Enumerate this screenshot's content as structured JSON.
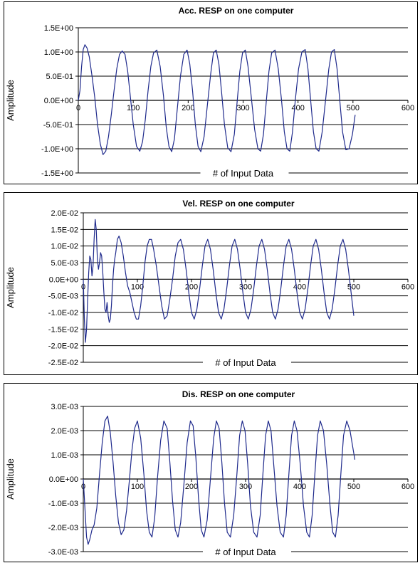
{
  "chart_data": [
    {
      "type": "line",
      "title": "Acc. RESP on one computer",
      "xlabel": "# of Input Data",
      "ylabel": "Amplitude",
      "xlim": [
        0,
        600
      ],
      "ylim": [
        -1.5,
        1.5
      ],
      "x_ticks": [
        0,
        100,
        200,
        300,
        400,
        500,
        600
      ],
      "x_tick_labels": [
        "0",
        "100",
        "200",
        "300",
        "400",
        "500",
        "600"
      ],
      "y_ticks": [
        1.5,
        1.0,
        0.5,
        0.0,
        -0.5,
        -1.0,
        -1.5
      ],
      "y_tick_labels": [
        "1.5E+00",
        "1.0E+00",
        "5.0E-01",
        "0.0E+00",
        "-5.0E-01",
        "-1.0E+00",
        "-1.5E+00"
      ],
      "grid": "horizontal",
      "series_color": "#1f2a8c",
      "series": [
        {
          "x": [
            0,
            3,
            6,
            9,
            12,
            16,
            20,
            25,
            30,
            35,
            40,
            45,
            50,
            55,
            60,
            65,
            70,
            75,
            80,
            85,
            90,
            95,
            100,
            106,
            112,
            117,
            122,
            127,
            132,
            137,
            143,
            149,
            155,
            160,
            165,
            170,
            175,
            180,
            186,
            192,
            198,
            203,
            208,
            213,
            218,
            223,
            229,
            235,
            241,
            246,
            251,
            256,
            261,
            266,
            272,
            278,
            284,
            289,
            294,
            299,
            304,
            309,
            315,
            321,
            327,
            332,
            337,
            342,
            347,
            352,
            358,
            364,
            370,
            375,
            380,
            385,
            390,
            395,
            401,
            407,
            413,
            418,
            423,
            428,
            433,
            438,
            444,
            450,
            456,
            461,
            466,
            471,
            476,
            481,
            487,
            493,
            499,
            504
          ],
          "y": [
            0.0,
            0.2,
            0.7,
            1.05,
            1.15,
            1.08,
            0.9,
            0.5,
            0.05,
            -0.5,
            -0.9,
            -1.12,
            -1.05,
            -0.75,
            -0.3,
            0.2,
            0.65,
            0.95,
            1.02,
            0.95,
            0.6,
            0.05,
            -0.5,
            -0.95,
            -1.05,
            -0.85,
            -0.4,
            0.2,
            0.7,
            0.98,
            1.04,
            0.7,
            0.1,
            -0.55,
            -0.95,
            -1.06,
            -0.8,
            -0.2,
            0.5,
            0.95,
            1.04,
            0.75,
            0.2,
            -0.5,
            -0.95,
            -1.06,
            -0.75,
            -0.1,
            0.55,
            0.98,
            1.04,
            0.75,
            0.15,
            -0.5,
            -0.98,
            -1.06,
            -0.7,
            -0.05,
            0.6,
            0.98,
            1.04,
            0.7,
            0.05,
            -0.6,
            -1.0,
            -1.05,
            -0.7,
            -0.05,
            0.6,
            0.98,
            1.04,
            0.65,
            0.0,
            -0.65,
            -1.0,
            -1.05,
            -0.65,
            0.0,
            0.65,
            1.0,
            1.05,
            0.65,
            0.0,
            -0.65,
            -1.0,
            -1.05,
            -0.65,
            0.0,
            0.65,
            1.0,
            1.05,
            0.65,
            0.0,
            -0.65,
            -1.02,
            -1.0,
            -0.7,
            -0.3
          ]
        }
      ]
    },
    {
      "type": "line",
      "title": "Vel. RESP on one computer",
      "xlabel": "# of Input Data",
      "ylabel": "Amplitude",
      "xlim": [
        0,
        600
      ],
      "ylim": [
        -0.025,
        0.02
      ],
      "x_ticks": [
        0,
        100,
        200,
        300,
        400,
        500,
        600
      ],
      "x_tick_labels": [
        "0",
        "100",
        "200",
        "300",
        "400",
        "500",
        "600"
      ],
      "y_ticks": [
        0.02,
        0.015,
        0.01,
        0.005,
        0.0,
        -0.005,
        -0.01,
        -0.015,
        -0.02,
        -0.025
      ],
      "y_tick_labels": [
        "2.0E-02",
        "1.5E-02",
        "1.0E-02",
        "5.0E-03",
        "0.0E+00",
        "-5.0E-03",
        "-1.0E-02",
        "-1.5E-02",
        "-2.0E-02",
        "-2.5E-02"
      ],
      "grid": "horizontal",
      "series_color": "#1f2a8c",
      "series": [
        {
          "x": [
            0,
            2,
            4,
            6,
            8,
            10,
            12,
            14,
            16,
            18,
            20,
            22,
            24,
            26,
            28,
            30,
            32,
            34,
            36,
            38,
            40,
            42,
            44,
            46,
            48,
            50,
            52,
            54,
            56,
            58,
            60,
            63,
            66,
            70,
            74,
            78,
            82,
            86,
            90,
            94,
            98,
            102,
            106,
            110,
            114,
            118,
            122,
            126,
            130,
            135,
            140,
            145,
            150,
            155,
            160,
            165,
            170,
            175,
            180,
            185,
            190,
            195,
            200,
            205,
            210,
            215,
            220,
            225,
            230,
            235,
            240,
            245,
            250,
            255,
            260,
            265,
            270,
            275,
            280,
            285,
            290,
            295,
            300,
            305,
            310,
            315,
            320,
            325,
            330,
            335,
            340,
            345,
            350,
            355,
            360,
            365,
            370,
            375,
            380,
            385,
            390,
            395,
            400,
            405,
            410,
            415,
            420,
            425,
            430,
            435,
            440,
            445,
            450,
            455,
            460,
            465,
            470,
            475,
            480,
            485,
            490,
            495,
            500
          ],
          "y": [
            0.0,
            -0.012,
            -0.019,
            -0.015,
            -0.006,
            0.002,
            0.007,
            0.006,
            0.001,
            0.004,
            0.012,
            0.018,
            0.015,
            0.006,
            0.003,
            0.005,
            0.008,
            0.007,
            0.002,
            -0.004,
            -0.009,
            -0.01,
            -0.007,
            -0.011,
            -0.013,
            -0.012,
            -0.008,
            -0.002,
            0.003,
            0.006,
            0.008,
            0.012,
            0.013,
            0.011,
            0.007,
            0.002,
            -0.002,
            -0.004,
            -0.007,
            -0.01,
            -0.012,
            -0.012,
            -0.008,
            -0.002,
            0.005,
            0.01,
            0.012,
            0.012,
            0.009,
            0.004,
            -0.002,
            -0.008,
            -0.012,
            -0.011,
            -0.006,
            0.0,
            0.007,
            0.011,
            0.012,
            0.009,
            0.003,
            -0.004,
            -0.01,
            -0.012,
            -0.009,
            -0.003,
            0.004,
            0.01,
            0.012,
            0.009,
            0.003,
            -0.004,
            -0.01,
            -0.012,
            -0.009,
            -0.003,
            0.004,
            0.01,
            0.012,
            0.009,
            0.003,
            -0.004,
            -0.01,
            -0.012,
            -0.009,
            -0.003,
            0.004,
            0.01,
            0.012,
            0.009,
            0.003,
            -0.004,
            -0.01,
            -0.012,
            -0.009,
            -0.003,
            0.004,
            0.01,
            0.012,
            0.009,
            0.003,
            -0.004,
            -0.01,
            -0.012,
            -0.009,
            -0.003,
            0.004,
            0.01,
            0.012,
            0.009,
            0.003,
            -0.004,
            -0.01,
            -0.012,
            -0.009,
            -0.003,
            0.004,
            0.01,
            0.012,
            0.009,
            0.003,
            -0.004,
            -0.011
          ]
        }
      ]
    },
    {
      "type": "line",
      "title": "Dis. RESP on one computer",
      "xlabel": "# of Input Data",
      "ylabel": "Amplitude",
      "xlim": [
        0,
        600
      ],
      "ylim": [
        -0.003,
        0.003
      ],
      "x_ticks": [
        0,
        100,
        200,
        300,
        400,
        500,
        600
      ],
      "x_tick_labels": [
        "0",
        "100",
        "200",
        "300",
        "400",
        "500",
        "600"
      ],
      "y_ticks": [
        0.003,
        0.002,
        0.001,
        0.0,
        -0.001,
        -0.002,
        -0.003
      ],
      "y_tick_labels": [
        "3.0E-03",
        "2.0E-03",
        "1.0E-03",
        "0.0E+00",
        "-1.0E-03",
        "-2.0E-03",
        "-3.0E-03"
      ],
      "grid": "horizontal",
      "series_color": "#1f2a8c",
      "series": [
        {
          "x": [
            0,
            3,
            6,
            9,
            12,
            16,
            20,
            25,
            30,
            35,
            40,
            45,
            50,
            55,
            60,
            65,
            70,
            75,
            80,
            85,
            90,
            95,
            100,
            106,
            112,
            117,
            122,
            127,
            132,
            137,
            143,
            149,
            155,
            160,
            165,
            170,
            175,
            180,
            186,
            192,
            198,
            203,
            208,
            213,
            218,
            223,
            229,
            235,
            241,
            246,
            251,
            256,
            261,
            266,
            272,
            278,
            284,
            289,
            294,
            299,
            304,
            309,
            315,
            321,
            327,
            332,
            337,
            342,
            347,
            352,
            358,
            364,
            370,
            375,
            380,
            385,
            390,
            395,
            401,
            407,
            413,
            418,
            423,
            428,
            433,
            438,
            444,
            450,
            456,
            461,
            466,
            471,
            476,
            481,
            487,
            493,
            499,
            502
          ],
          "y": [
            0.0,
            -0.0012,
            -0.0024,
            -0.0027,
            -0.0025,
            -0.0021,
            -0.0019,
            -0.0012,
            0.0002,
            0.0015,
            0.0024,
            0.0026,
            0.0019,
            0.0007,
            -0.0007,
            -0.0018,
            -0.0023,
            -0.0021,
            -0.0013,
            -0.0001,
            0.0012,
            0.0021,
            0.0024,
            0.0017,
            0.0002,
            -0.0013,
            -0.0022,
            -0.0024,
            -0.0016,
            0.0,
            0.0016,
            0.0024,
            0.0021,
            0.0007,
            -0.0009,
            -0.0021,
            -0.0024,
            -0.0018,
            -0.0002,
            0.0015,
            0.0024,
            0.0022,
            0.0009,
            -0.0008,
            -0.0021,
            -0.0024,
            -0.0017,
            0.0,
            0.0017,
            0.0024,
            0.0021,
            0.0007,
            -0.001,
            -0.0022,
            -0.0024,
            -0.0015,
            0.0002,
            0.0018,
            0.0024,
            0.002,
            0.0006,
            -0.0011,
            -0.0022,
            -0.0024,
            -0.0015,
            0.0002,
            0.0018,
            0.0024,
            0.002,
            0.0006,
            -0.0011,
            -0.0022,
            -0.0024,
            -0.0015,
            0.0002,
            0.0018,
            0.0024,
            0.002,
            0.0006,
            -0.0011,
            -0.0022,
            -0.0024,
            -0.0015,
            0.0002,
            0.0018,
            0.0024,
            0.002,
            0.0006,
            -0.0011,
            -0.0022,
            -0.0024,
            -0.0015,
            0.0002,
            0.0018,
            0.0024,
            0.002,
            0.0012,
            0.0008
          ]
        }
      ]
    }
  ]
}
